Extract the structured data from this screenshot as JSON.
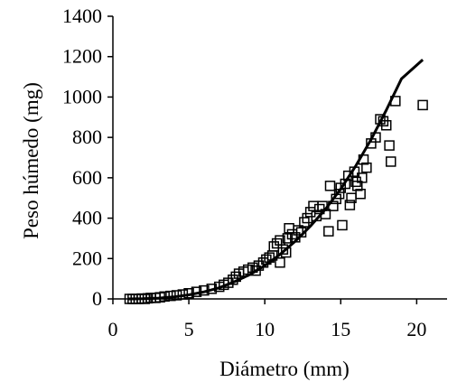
{
  "chart_data": {
    "type": "scatter",
    "title": "",
    "xlabel": "Diámetro (mm)",
    "ylabel": "Peso húmedo (mg)",
    "xlim": [
      0,
      22
    ],
    "ylim": [
      0,
      1400
    ],
    "x_ticks": [
      "0",
      "5",
      "10",
      "15",
      "20"
    ],
    "y_ticks": [
      "0",
      "200",
      "400",
      "600",
      "800",
      "1000",
      "1200",
      "1400"
    ],
    "grid": false,
    "legend": "none",
    "series": [
      {
        "kind": "scatter",
        "marker": "open-square",
        "points": [
          [
            1.1,
            0
          ],
          [
            1.3,
            0
          ],
          [
            1.5,
            0
          ],
          [
            1.7,
            0
          ],
          [
            1.9,
            2
          ],
          [
            2.1,
            0
          ],
          [
            2.3,
            3
          ],
          [
            2.5,
            5
          ],
          [
            2.8,
            5
          ],
          [
            3.1,
            8
          ],
          [
            3.4,
            12
          ],
          [
            3.8,
            15
          ],
          [
            4.2,
            18
          ],
          [
            4.6,
            22
          ],
          [
            5.0,
            28
          ],
          [
            5.5,
            35
          ],
          [
            6.0,
            42
          ],
          [
            6.5,
            50
          ],
          [
            7.0,
            60
          ],
          [
            7.3,
            70
          ],
          [
            7.6,
            80
          ],
          [
            7.9,
            95
          ],
          [
            8.1,
            110
          ],
          [
            8.3,
            125
          ],
          [
            8.6,
            135
          ],
          [
            8.9,
            145
          ],
          [
            9.2,
            155
          ],
          [
            9.4,
            140
          ],
          [
            9.6,
            165
          ],
          [
            9.9,
            180
          ],
          [
            10.1,
            195
          ],
          [
            10.3,
            205
          ],
          [
            10.5,
            215
          ],
          [
            10.6,
            260
          ],
          [
            10.8,
            275
          ],
          [
            11.0,
            180
          ],
          [
            11.0,
            290
          ],
          [
            11.2,
            245
          ],
          [
            11.4,
            230
          ],
          [
            11.5,
            300
          ],
          [
            11.6,
            350
          ],
          [
            11.8,
            320
          ],
          [
            12.0,
            305
          ],
          [
            12.2,
            340
          ],
          [
            12.4,
            330
          ],
          [
            12.6,
            380
          ],
          [
            12.8,
            400
          ],
          [
            13.0,
            430
          ],
          [
            13.2,
            460
          ],
          [
            13.4,
            410
          ],
          [
            13.6,
            445
          ],
          [
            13.8,
            460
          ],
          [
            14.0,
            420
          ],
          [
            14.2,
            335
          ],
          [
            14.3,
            560
          ],
          [
            14.5,
            460
          ],
          [
            14.7,
            495
          ],
          [
            14.9,
            520
          ],
          [
            15.0,
            550
          ],
          [
            15.1,
            365
          ],
          [
            15.3,
            570
          ],
          [
            15.5,
            610
          ],
          [
            15.6,
            465
          ],
          [
            15.7,
            500
          ],
          [
            15.9,
            630
          ],
          [
            16.0,
            580
          ],
          [
            16.1,
            560
          ],
          [
            16.3,
            520
          ],
          [
            16.4,
            600
          ],
          [
            16.5,
            690
          ],
          [
            16.7,
            650
          ],
          [
            17.0,
            770
          ],
          [
            17.3,
            800
          ],
          [
            17.6,
            890
          ],
          [
            17.8,
            880
          ],
          [
            18.0,
            860
          ],
          [
            18.2,
            760
          ],
          [
            18.3,
            680
          ],
          [
            18.6,
            980
          ],
          [
            20.4,
            960
          ]
        ]
      },
      {
        "kind": "fit-line",
        "x": [
          1,
          2,
          3,
          4,
          5,
          6,
          7,
          8,
          9,
          10,
          11,
          12,
          13,
          14,
          15,
          16,
          17,
          18,
          19,
          20.4
        ],
        "y": [
          0,
          1,
          4,
          10,
          20,
          35,
          55,
          85,
          120,
          165,
          220,
          285,
          360,
          445,
          545,
          660,
          790,
          935,
          1090,
          1185
        ]
      }
    ]
  }
}
